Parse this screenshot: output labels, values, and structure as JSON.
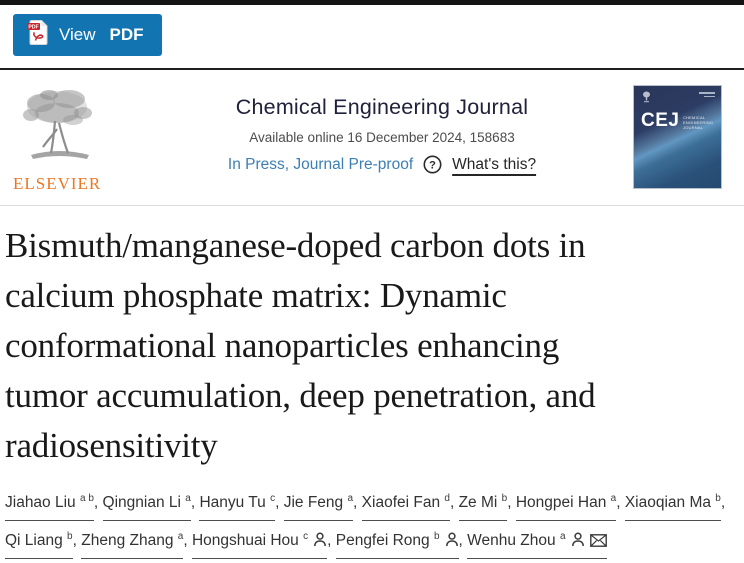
{
  "toolbar": {
    "view_label": "View",
    "pdf_label": "PDF"
  },
  "header": {
    "publisher": "ELSEVIER",
    "journal_title": "Chemical Engineering Journal",
    "available_text": "Available online 16 December 2024, 158683",
    "in_press_label": "In Press, Journal Pre-proof",
    "whats_this_label": "What's this?"
  },
  "cover": {
    "acronym": "CEJ",
    "journal_lines": [
      "CHEMICAL",
      "ENGINEERING",
      "JOURNAL"
    ]
  },
  "article": {
    "title": "Bismuth/manganese-doped carbon dots in calcium phosphate matrix: Dynamic conformational nanoparticles enhancing tumor accumulation, deep penetration, and radiosensitivity",
    "title_lines": [
      "Bismuth/manganese-doped carbon dots in",
      "calcium phosphate matrix: Dynamic",
      "conformational nanoparticles enhancing",
      "tumor accumulation, deep penetration, and",
      "radiosensitivity"
    ],
    "separator": ", ",
    "authors": [
      {
        "name": "Jiahao Liu",
        "sup": "a b"
      },
      {
        "name": "Qingnian Li",
        "sup": "a"
      },
      {
        "name": "Hanyu Tu",
        "sup": "c"
      },
      {
        "name": "Jie Feng",
        "sup": "a"
      },
      {
        "name": "Xiaofei Fan",
        "sup": "d"
      },
      {
        "name": "Ze Mi",
        "sup": "b"
      },
      {
        "name": "Hongpei Han",
        "sup": "a"
      },
      {
        "name": "Xiaoqian Ma",
        "sup": "b"
      },
      {
        "name": "Qi Liang",
        "sup": "b"
      },
      {
        "name": "Zheng Zhang",
        "sup": "a"
      },
      {
        "name": "Hongshuai Hou",
        "sup": "c",
        "person_icon": true
      },
      {
        "name": "Pengfei Rong",
        "sup": "b",
        "person_icon": true
      },
      {
        "name": "Wenhu Zhou",
        "sup": "a",
        "person_icon": true,
        "email_icon": true
      }
    ]
  },
  "colors": {
    "accent_blue": "#1274b0",
    "link_blue": "#3b7fb4",
    "elsevier_orange": "#ee7623",
    "pdf_red": "#c9252c",
    "title_text": "#191919",
    "cover_navy": "#2c3c63"
  }
}
